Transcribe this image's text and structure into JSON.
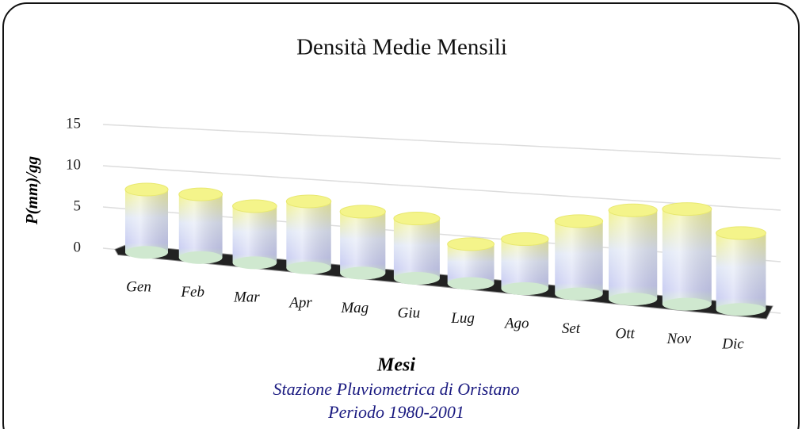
{
  "chart_data": {
    "type": "bar",
    "title": "Densità Medie Mensili",
    "y_label": "P(mm)/gg",
    "x_label": "Mesi",
    "subtitle": [
      "Stazione Pluviometrica di Oristano",
      "Periodo 1980-2001"
    ],
    "categories": [
      "Gen",
      "Feb",
      "Mar",
      "Apr",
      "Mag",
      "Giu",
      "Lug",
      "Ago",
      "Set",
      "Ott",
      "Nov",
      "Dic"
    ],
    "values": [
      7.5,
      7.4,
      6.5,
      7.5,
      6.8,
      6.5,
      4.2,
      5.2,
      7.5,
      9.0,
      9.5,
      7.5
    ],
    "color": "#f4f48a",
    "ylim": [
      0,
      15
    ],
    "yticks": [
      0,
      5,
      10,
      15
    ],
    "grid": true
  }
}
